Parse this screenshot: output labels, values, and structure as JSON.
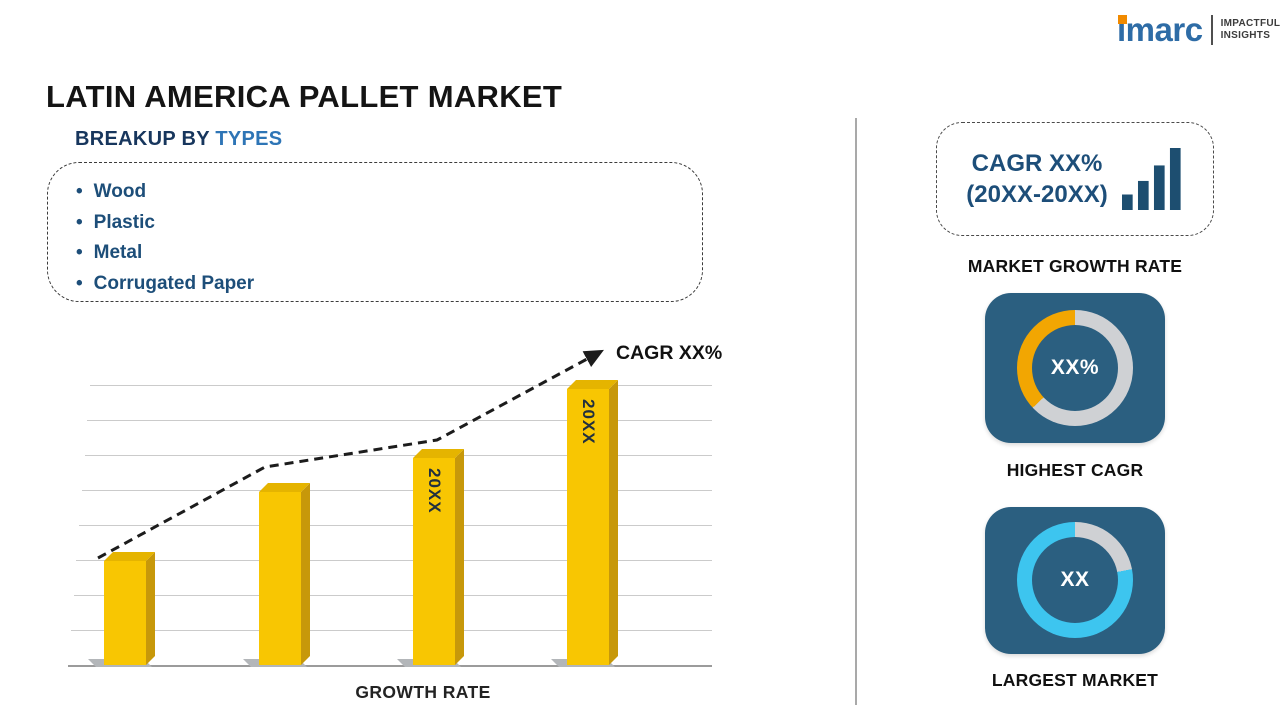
{
  "page": {
    "title": "LATIN AMERICA PALLET MARKET"
  },
  "logo": {
    "brand": "imarc",
    "tagline1": "IMPACTFUL",
    "tagline2": "INSIGHTS"
  },
  "breakup": {
    "heading_prefix": "BREAKUP BY",
    "heading_highlight": "TYPES",
    "items": [
      "Wood",
      "Plastic",
      "Metal",
      "Corrugated Paper"
    ]
  },
  "chart_data": [
    {
      "type": "bar",
      "title": "",
      "categories": [
        "",
        "",
        "20XX",
        "20XX"
      ],
      "values": [
        30,
        50,
        60,
        80
      ],
      "ylim": [
        0,
        100
      ],
      "grid": true,
      "xlabel": "GROWTH RATE",
      "ylabel": "",
      "trend": {
        "label": "CAGR XX%",
        "style": "dashed-arrow"
      }
    },
    {
      "type": "pie",
      "subtype": "donut",
      "label": "HIGHEST CAGR",
      "center_text": "XX%",
      "slices": [
        {
          "name": "base",
          "color": "#CFD1D4",
          "fraction": 0.63
        },
        {
          "name": "highlight",
          "color": "#F2A602",
          "fraction": 0.37
        }
      ]
    },
    {
      "type": "pie",
      "subtype": "donut",
      "label": "LARGEST MARKET",
      "center_text": "XX",
      "slices": [
        {
          "name": "base",
          "color": "#CFD1D4",
          "fraction": 0.22
        },
        {
          "name": "highlight",
          "color": "#3DC5EF",
          "fraction": 0.78
        }
      ]
    }
  ],
  "right_panel": {
    "cagr_box": {
      "line1": "CAGR XX%",
      "line2": "(20XX-20XX)"
    },
    "growth_label": "MARKET GROWTH RATE"
  },
  "colors": {
    "bar_gold": "#F8C602",
    "bar_side": "#C7980A",
    "bar_top": "#E5B400",
    "navy_tile": "#2B5F80",
    "navy_text": "#1D4E79",
    "accent_blue": "#2E75B6",
    "donut_gray": "#CFD1D4",
    "donut_orange": "#F2A602",
    "donut_cyan": "#3DC5EF",
    "logo_blue": "#2E6CA6",
    "logo_orange": "#F18A00"
  }
}
